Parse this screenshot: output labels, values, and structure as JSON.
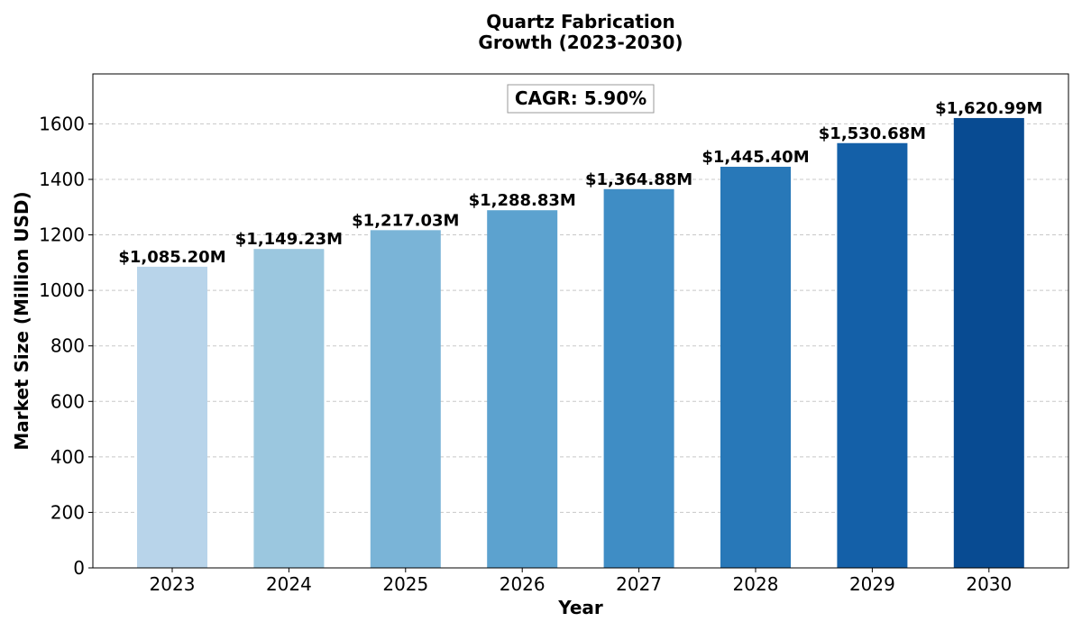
{
  "chart_data": {
    "type": "bar",
    "title_lines": [
      "Quartz Fabrication",
      "Growth (2023-2030)"
    ],
    "xlabel": "Year",
    "ylabel": "Market Size (Million USD)",
    "categories": [
      "2023",
      "2024",
      "2025",
      "2026",
      "2027",
      "2028",
      "2029",
      "2030"
    ],
    "values": [
      1085.2,
      1149.23,
      1217.03,
      1288.83,
      1364.88,
      1445.4,
      1530.68,
      1620.99
    ],
    "value_labels": [
      "$1,085.20M",
      "$1,149.23M",
      "$1,217.03M",
      "$1,288.83M",
      "$1,364.88M",
      "$1,445.40M",
      "$1,530.68M",
      "$1,620.99M"
    ],
    "bar_colors": [
      "#b8d4ea",
      "#9bc7df",
      "#7ab4d7",
      "#5ca2cf",
      "#3f8dc5",
      "#2878b8",
      "#1460a8",
      "#084b92"
    ],
    "yticks": [
      0,
      200,
      400,
      600,
      800,
      1000,
      1200,
      1400,
      1600
    ],
    "ylim": [
      0,
      1780
    ],
    "grid": "y-dashed",
    "annotation": "CAGR: 5.90%",
    "annotation_position": "top-center"
  }
}
